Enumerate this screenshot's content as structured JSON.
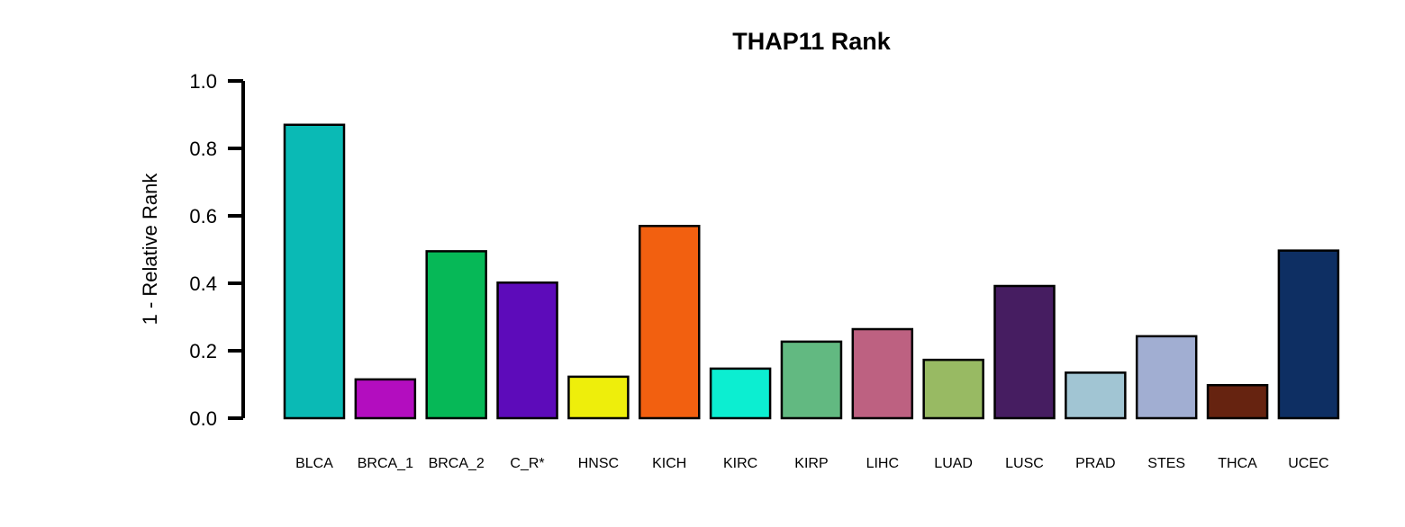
{
  "chart_data": {
    "type": "bar",
    "title": "THAP11 Rank",
    "xlabel": "",
    "ylabel": "1 - Relative Rank",
    "ylim": [
      0,
      1
    ],
    "yticks": [
      "0.0",
      "0.2",
      "0.4",
      "0.6",
      "0.8",
      "1.0"
    ],
    "ytick_values": [
      0,
      0.2,
      0.4,
      0.6,
      0.8,
      1.0
    ],
    "grid": false,
    "categories": [
      "BLCA",
      "BRCA_1",
      "BRCA_2",
      "C_R*",
      "HNSC",
      "KICH",
      "KIRC",
      "KIRP",
      "LIHC",
      "LUAD",
      "LUSC",
      "PRAD",
      "STES",
      "THCA",
      "UCEC"
    ],
    "values": [
      0.87,
      0.115,
      0.495,
      0.402,
      0.123,
      0.57,
      0.147,
      0.227,
      0.264,
      0.173,
      0.392,
      0.135,
      0.243,
      0.098,
      0.497
    ],
    "colors": [
      "#0ABAB5",
      "#B30DBF",
      "#06B857",
      "#5D0BBA",
      "#EEEE0B",
      "#F26010",
      "#0CEED1",
      "#62B981",
      "#BD6181",
      "#98BA63",
      "#461D61",
      "#A1C5D3",
      "#A1AED2",
      "#662310",
      "#0E2F63"
    ],
    "bar_edge_color": "#000000"
  }
}
